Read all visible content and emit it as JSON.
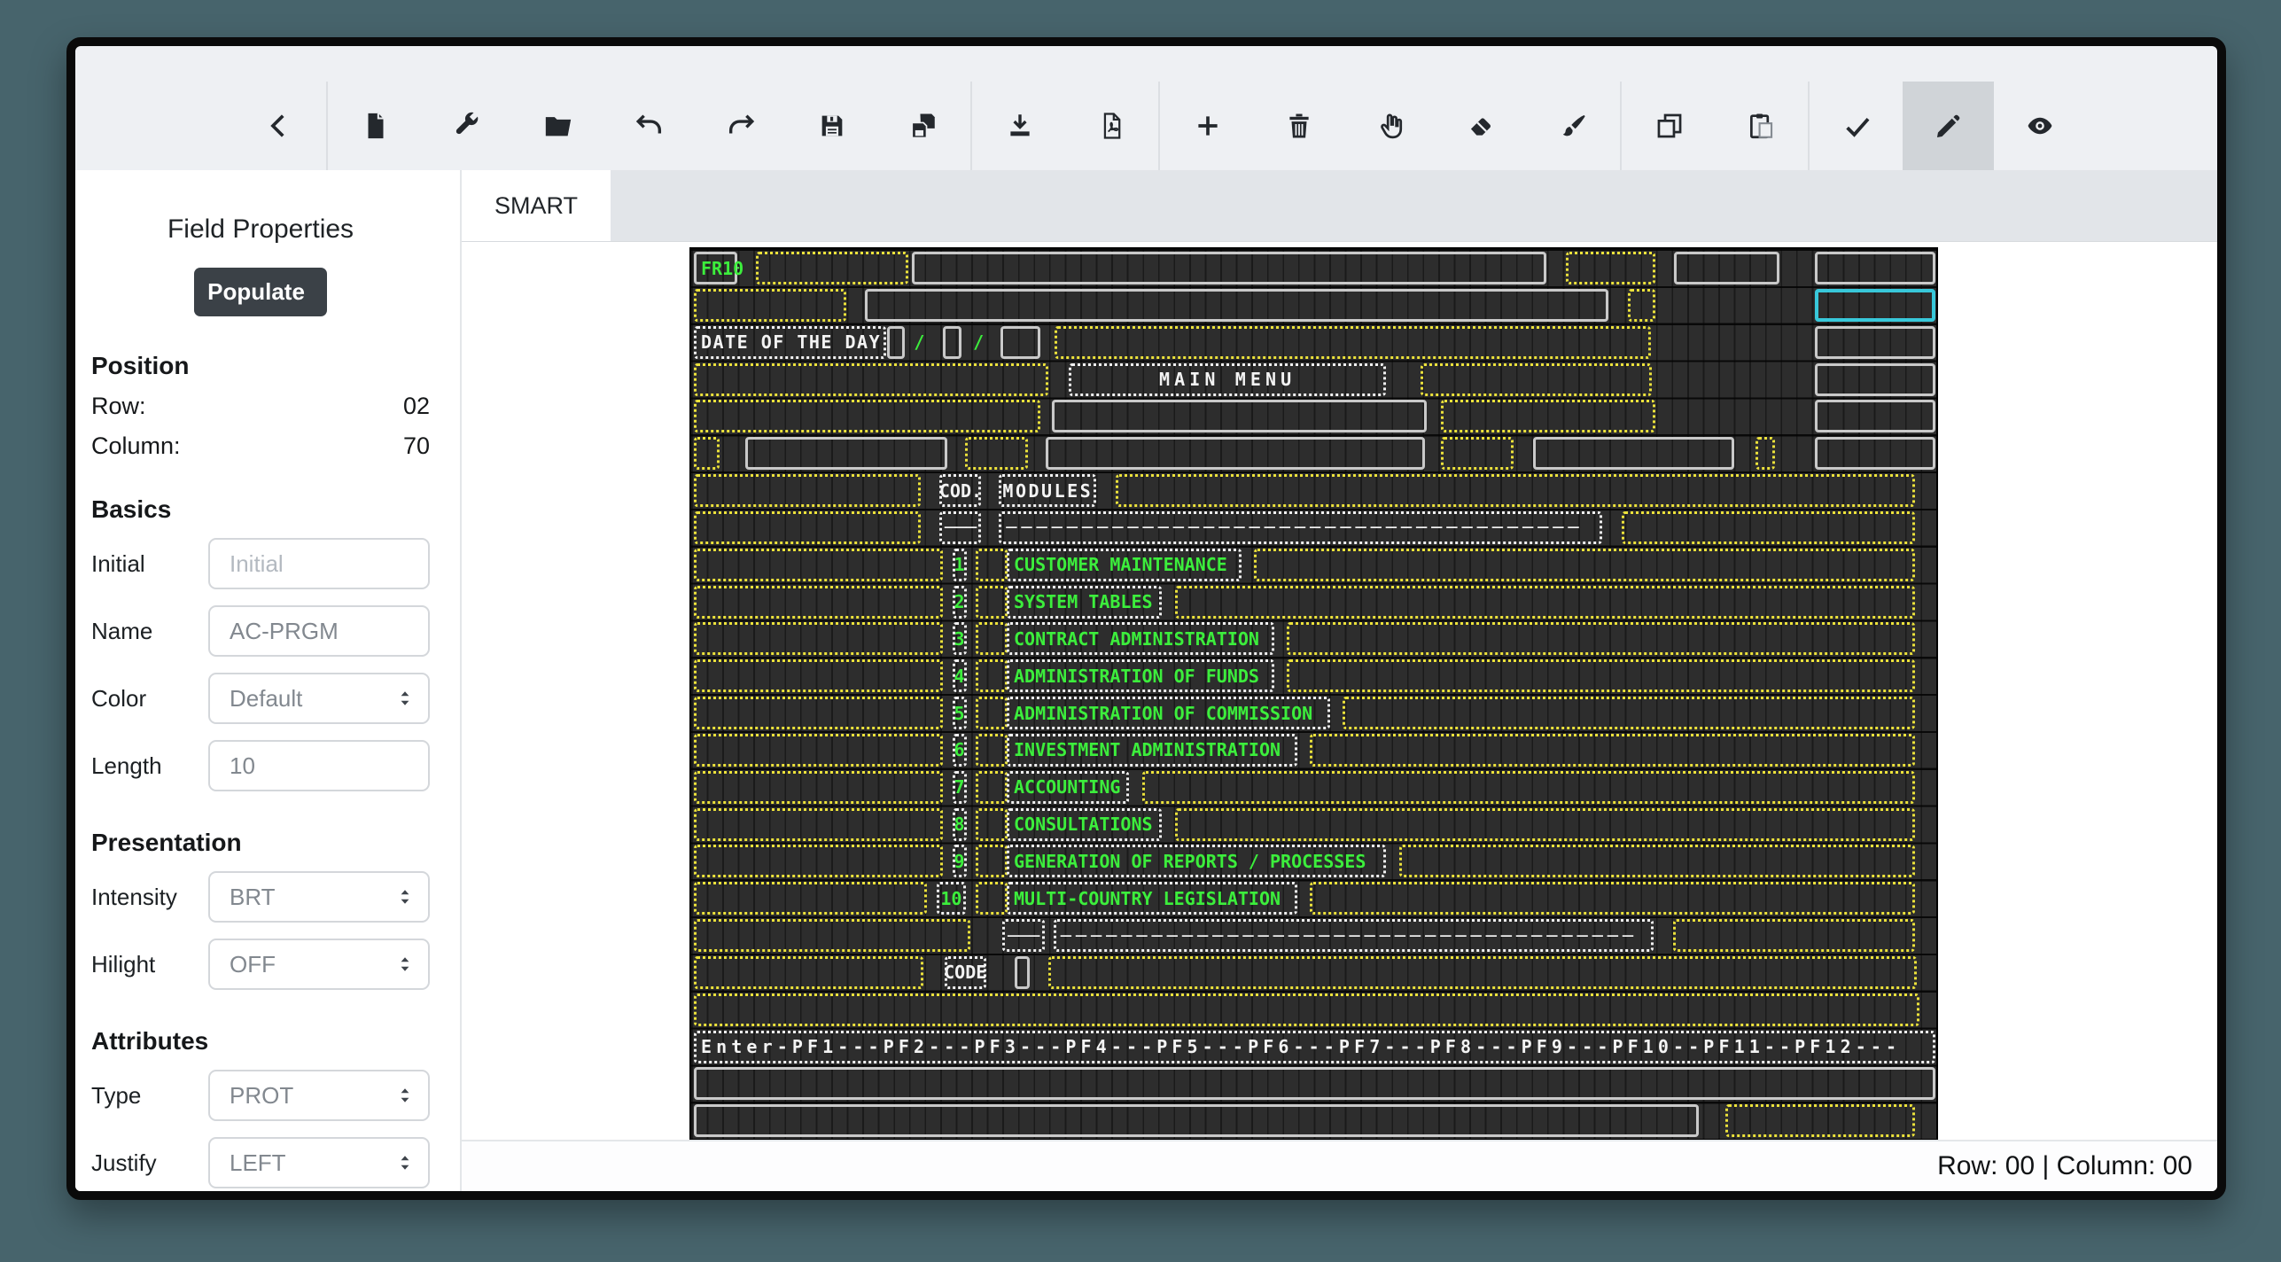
{
  "toolbar": {
    "groups": [
      [
        "back"
      ],
      [
        "new-file",
        "wrench",
        "open-folder",
        "undo",
        "redo",
        "save",
        "save-as"
      ],
      [
        "download",
        "export-pdf"
      ],
      [
        "add-field",
        "delete-field",
        "hand-tool",
        "eraser-tool",
        "brush-tool"
      ],
      [
        "copy",
        "paste"
      ],
      [
        "confirm",
        "draw-tool",
        "preview"
      ]
    ],
    "active": "draw-tool"
  },
  "tabs": [
    {
      "label": "SMART",
      "active": true
    }
  ],
  "sidebar": {
    "title": "Field Properties",
    "populate_label": "Populate",
    "sections": [
      {
        "heading": "Position",
        "static_rows": [
          {
            "label": "Row:",
            "value": "02"
          },
          {
            "label": "Column:",
            "value": "70"
          }
        ]
      },
      {
        "heading": "Basics",
        "fields": [
          {
            "label": "Initial",
            "control": "input",
            "value": "",
            "placeholder": "Initial"
          },
          {
            "label": "Name",
            "control": "input",
            "value": "AC-PRGM"
          },
          {
            "label": "Color",
            "control": "select",
            "value": "Default"
          },
          {
            "label": "Length",
            "control": "input",
            "value": "10"
          }
        ]
      },
      {
        "heading": "Presentation",
        "fields": [
          {
            "label": "Intensity",
            "control": "select",
            "value": "BRT"
          },
          {
            "label": "Hilight",
            "control": "select",
            "value": "OFF"
          }
        ]
      },
      {
        "heading": "Attributes",
        "fields": [
          {
            "label": "Type",
            "control": "select",
            "value": "PROT"
          },
          {
            "label": "Justify",
            "control": "select",
            "value": "LEFT"
          }
        ]
      }
    ]
  },
  "statusbar": {
    "text": "Row: 00 | Column: 00"
  },
  "terminal": {
    "cols": 80,
    "rows": 24,
    "colors": {
      "background": "#2d2d2d",
      "unprotected_outline": "#ece23b",
      "label_outline": "#f2f2f2",
      "output_outline": "#c9c9c9",
      "selected_outline": "#38c8da",
      "text": "#f3f3f3",
      "bright_green": "#3cee3c"
    },
    "fields": [
      [
        1,
        1,
        3,
        "s",
        "FR10",
        "g"
      ],
      [
        1,
        5,
        10,
        "y"
      ],
      [
        1,
        15,
        41,
        "s"
      ],
      [
        1,
        57,
        6,
        "y"
      ],
      [
        1,
        64,
        7,
        "s"
      ],
      [
        1,
        73,
        8,
        "s"
      ],
      [
        2,
        1,
        10,
        "y"
      ],
      [
        2,
        12,
        48,
        "s"
      ],
      [
        2,
        61,
        2,
        "y"
      ],
      [
        2,
        73,
        8,
        "c"
      ],
      [
        3,
        1,
        12.6,
        "w",
        "DATE OF THE DAY",
        "ls1"
      ],
      [
        3,
        13.4,
        1.4,
        "s"
      ],
      [
        3,
        15.1,
        1,
        "t",
        "/",
        "g ctr"
      ],
      [
        3,
        17,
        1.4,
        "s"
      ],
      [
        3,
        18.9,
        1,
        "t",
        "/",
        "g ctr"
      ],
      [
        3,
        20.7,
        2.8,
        "s"
      ],
      [
        3,
        24.2,
        38.5,
        "y"
      ],
      [
        3,
        73,
        8,
        "s"
      ],
      [
        4,
        1,
        23,
        "y"
      ],
      [
        4,
        25.1,
        20.6,
        "w",
        "MAIN MENU",
        "ls5 ctr"
      ],
      [
        4,
        47.7,
        15.1,
        "y"
      ],
      [
        4,
        73,
        8,
        "s"
      ],
      [
        5,
        1,
        22.5,
        "y"
      ],
      [
        5,
        24,
        24.3,
        "s"
      ],
      [
        5,
        49,
        14,
        "y"
      ],
      [
        5,
        73,
        8,
        "s"
      ],
      [
        6,
        1,
        1.9,
        "y"
      ],
      [
        6,
        4.3,
        13.2,
        "s"
      ],
      [
        6,
        18.4,
        4.3,
        "y"
      ],
      [
        6,
        23.6,
        24.6,
        "s"
      ],
      [
        6,
        49,
        4.9,
        "y"
      ],
      [
        6,
        54.9,
        13.2,
        "s"
      ],
      [
        6,
        69.2,
        1.5,
        "y"
      ],
      [
        6,
        73,
        8,
        "s"
      ],
      [
        7,
        1,
        14.8,
        "y"
      ],
      [
        7,
        16.8,
        2.9,
        "w",
        "COD.",
        "ctr"
      ],
      [
        7,
        20.6,
        6.5,
        "w",
        "MODULES",
        "ls2 ctr"
      ],
      [
        7,
        28.1,
        51.6,
        "y"
      ],
      [
        8,
        1,
        14.8,
        "y"
      ],
      [
        8,
        16.8,
        2.9,
        "w",
        "───",
        "ctr"
      ],
      [
        8,
        20.6,
        39,
        "w",
        "──────────────────────────────────────",
        "ls5"
      ],
      [
        8,
        60.6,
        19.1,
        "y"
      ],
      [
        9,
        1,
        16.2,
        "y"
      ],
      [
        9,
        17.6,
        1.1,
        "w",
        "1",
        "g ctr"
      ],
      [
        9,
        19.1,
        2.3,
        "y"
      ],
      [
        9,
        21.1,
        15.3,
        "w",
        "CUSTOMER MAINTENANCE",
        "g"
      ],
      [
        9,
        37,
        42.7,
        "y"
      ],
      [
        10,
        1,
        16.2,
        "y"
      ],
      [
        10,
        17.6,
        1.1,
        "w",
        "2",
        "g ctr"
      ],
      [
        10,
        19.1,
        2.3,
        "y"
      ],
      [
        10,
        21.1,
        10.2,
        "w",
        "SYSTEM TABLES",
        "g"
      ],
      [
        10,
        31.9,
        47.8,
        "y"
      ],
      [
        11,
        1,
        16.2,
        "y"
      ],
      [
        11,
        17.6,
        1.1,
        "w",
        "3",
        "g ctr"
      ],
      [
        11,
        19.1,
        2.3,
        "y"
      ],
      [
        11,
        21.1,
        17.4,
        "w",
        "CONTRACT ADMINISTRATION",
        "g"
      ],
      [
        11,
        39.1,
        40.6,
        "y"
      ],
      [
        12,
        1,
        16.2,
        "y"
      ],
      [
        12,
        17.6,
        1.1,
        "w",
        "4",
        "g ctr"
      ],
      [
        12,
        19.1,
        2.3,
        "y"
      ],
      [
        12,
        21.1,
        17.4,
        "w",
        "ADMINISTRATION OF FUNDS",
        "g"
      ],
      [
        12,
        39.1,
        40.6,
        "y"
      ],
      [
        13,
        1,
        16.2,
        "y"
      ],
      [
        13,
        17.6,
        1.1,
        "w",
        "5",
        "g ctr"
      ],
      [
        13,
        19.1,
        2.3,
        "y"
      ],
      [
        13,
        21.1,
        21,
        "w",
        "ADMINISTRATION OF COMMISSION",
        "g"
      ],
      [
        13,
        42.7,
        37,
        "y"
      ],
      [
        14,
        1,
        16.2,
        "y"
      ],
      [
        14,
        17.6,
        1.1,
        "w",
        "6",
        "g ctr"
      ],
      [
        14,
        19.1,
        2.3,
        "y"
      ],
      [
        14,
        21.1,
        18.9,
        "w",
        "INVESTMENT ADMINISTRATION",
        "g"
      ],
      [
        14,
        40.6,
        39.1,
        "y"
      ],
      [
        15,
        1,
        16.2,
        "y"
      ],
      [
        15,
        17.6,
        1.1,
        "w",
        "7",
        "g ctr"
      ],
      [
        15,
        19.1,
        2.3,
        "y"
      ],
      [
        15,
        21.1,
        8.1,
        "w",
        "ACCOUNTING",
        "g"
      ],
      [
        15,
        29.8,
        49.9,
        "y"
      ],
      [
        16,
        1,
        16.2,
        "y"
      ],
      [
        16,
        17.6,
        1.1,
        "w",
        "8",
        "g ctr"
      ],
      [
        16,
        19.1,
        2.3,
        "y"
      ],
      [
        16,
        21.1,
        10.2,
        "w",
        "CONSULTATIONS",
        "g"
      ],
      [
        16,
        31.9,
        47.8,
        "y"
      ],
      [
        17,
        1,
        16.2,
        "y"
      ],
      [
        17,
        17.6,
        1.1,
        "w",
        "9",
        "g ctr"
      ],
      [
        17,
        19.1,
        2.3,
        "y"
      ],
      [
        17,
        21.1,
        24.6,
        "w",
        "GENERATION OF REPORTS / PROCESSES",
        "g"
      ],
      [
        17,
        46.3,
        33.4,
        "y"
      ],
      [
        18,
        1,
        15.2,
        "y"
      ],
      [
        18,
        16.6,
        2.1,
        "w",
        "10",
        "g ctr"
      ],
      [
        18,
        19.1,
        2.3,
        "y"
      ],
      [
        18,
        21.1,
        18.9,
        "w",
        "MULTI-COUNTRY LEGISLATION",
        "g"
      ],
      [
        18,
        40.6,
        39.1,
        "y"
      ],
      [
        19,
        1,
        18,
        "y"
      ],
      [
        19,
        20.8,
        3,
        "w",
        "───",
        "ctr"
      ],
      [
        19,
        24.1,
        38.8,
        "w",
        "──────────────────────────────────────",
        "ls5"
      ],
      [
        19,
        63.9,
        15.8,
        "y"
      ],
      [
        20,
        1,
        15,
        "y"
      ],
      [
        20,
        17.1,
        2.9,
        "w",
        "CODE",
        "ctr"
      ],
      [
        20,
        21.6,
        1.2,
        "s"
      ],
      [
        20,
        23.8,
        56,
        "y"
      ],
      [
        21,
        1,
        79,
        "y"
      ],
      [
        22,
        1,
        80,
        "w",
        "Enter-PF1---PF2---PF3---PF4---PF5---PF6---PF7---PF8---PF9---PF10--PF11--PF12---",
        "ls5"
      ],
      [
        23,
        1,
        80,
        "s"
      ],
      [
        24,
        1,
        64.8,
        "s"
      ],
      [
        24,
        67.3,
        12.4,
        "y"
      ]
    ]
  }
}
